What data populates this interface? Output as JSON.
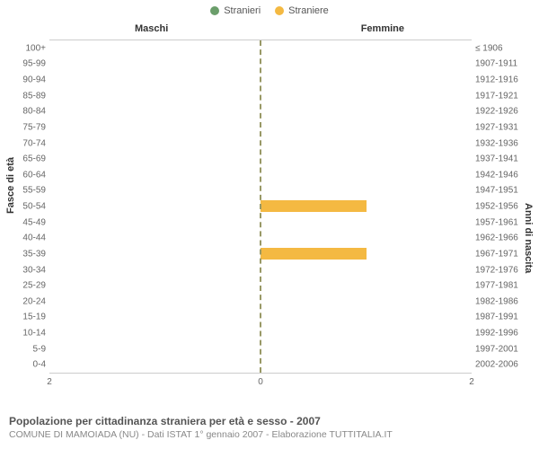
{
  "legend": {
    "m": {
      "label": "Stranieri",
      "color": "#6b9e6b"
    },
    "f": {
      "label": "Straniere",
      "color": "#f4b942"
    }
  },
  "headings": {
    "left": "Maschi",
    "right": "Femmine"
  },
  "axis_titles": {
    "left": "Fasce di età",
    "right": "Anni di nascita"
  },
  "chart": {
    "type": "population-pyramid",
    "x_max": 2,
    "x_ticks_left": [
      2,
      0
    ],
    "x_ticks_right": [
      2
    ],
    "center_line_color": "#999966",
    "bar_color_m": "#6b9e6b",
    "bar_color_f": "#f4b942",
    "background_color": "#ffffff",
    "rows": [
      {
        "age": "100+",
        "birth": "≤ 1906",
        "m": 0,
        "f": 0
      },
      {
        "age": "95-99",
        "birth": "1907-1911",
        "m": 0,
        "f": 0
      },
      {
        "age": "90-94",
        "birth": "1912-1916",
        "m": 0,
        "f": 0
      },
      {
        "age": "85-89",
        "birth": "1917-1921",
        "m": 0,
        "f": 0
      },
      {
        "age": "80-84",
        "birth": "1922-1926",
        "m": 0,
        "f": 0
      },
      {
        "age": "75-79",
        "birth": "1927-1931",
        "m": 0,
        "f": 0
      },
      {
        "age": "70-74",
        "birth": "1932-1936",
        "m": 0,
        "f": 0
      },
      {
        "age": "65-69",
        "birth": "1937-1941",
        "m": 0,
        "f": 0
      },
      {
        "age": "60-64",
        "birth": "1942-1946",
        "m": 0,
        "f": 0
      },
      {
        "age": "55-59",
        "birth": "1947-1951",
        "m": 0,
        "f": 0
      },
      {
        "age": "50-54",
        "birth": "1952-1956",
        "m": 0,
        "f": 1
      },
      {
        "age": "45-49",
        "birth": "1957-1961",
        "m": 0,
        "f": 0
      },
      {
        "age": "40-44",
        "birth": "1962-1966",
        "m": 0,
        "f": 0
      },
      {
        "age": "35-39",
        "birth": "1967-1971",
        "m": 0,
        "f": 1
      },
      {
        "age": "30-34",
        "birth": "1972-1976",
        "m": 0,
        "f": 0
      },
      {
        "age": "25-29",
        "birth": "1977-1981",
        "m": 0,
        "f": 0
      },
      {
        "age": "20-24",
        "birth": "1982-1986",
        "m": 0,
        "f": 0
      },
      {
        "age": "15-19",
        "birth": "1987-1991",
        "m": 0,
        "f": 0
      },
      {
        "age": "10-14",
        "birth": "1992-1996",
        "m": 0,
        "f": 0
      },
      {
        "age": "5-9",
        "birth": "1997-2001",
        "m": 0,
        "f": 0
      },
      {
        "age": "0-4",
        "birth": "2002-2006",
        "m": 0,
        "f": 0
      }
    ]
  },
  "footer": {
    "title": "Popolazione per cittadinanza straniera per età e sesso - 2007",
    "sub": "COMUNE DI MAMOIADA (NU) - Dati ISTAT 1° gennaio 2007 - Elaborazione TUTTITALIA.IT"
  }
}
